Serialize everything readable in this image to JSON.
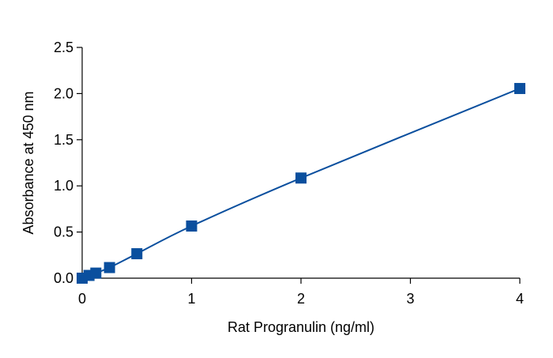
{
  "chart_data": {
    "type": "scatter",
    "title": "",
    "xlabel": "Rat Progranulin (ng/ml)",
    "ylabel": "Absorbance at 450 nm",
    "xlim": [
      0,
      4
    ],
    "ylim": [
      0,
      2.5
    ],
    "x_ticks": [
      "0",
      "1",
      "2",
      "3",
      "4"
    ],
    "y_ticks": [
      "0.0",
      "0.5",
      "1.0",
      "1.5",
      "2.0",
      "2.5"
    ],
    "grid": false,
    "legend": "none",
    "fit_curve": true,
    "marker": "square",
    "color": "#0a4f9e",
    "series": [
      {
        "x": [
          0,
          0.0625,
          0.125,
          0.25,
          0.5,
          1,
          2,
          4
        ],
        "y": [
          0.0,
          0.03,
          0.055,
          0.115,
          0.265,
          0.565,
          1.085,
          2.055
        ]
      }
    ]
  }
}
